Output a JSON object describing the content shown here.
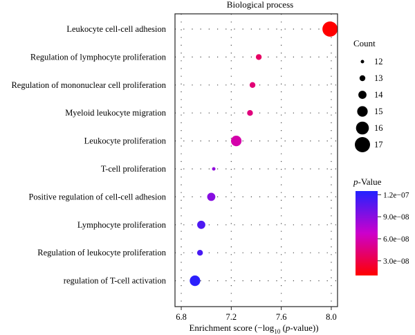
{
  "chart_data": {
    "type": "scatter",
    "title": "Biological process",
    "xlabel_main": "Enrichment score (−log",
    "xlabel_sub": "10",
    "xlabel_paren_open": " (",
    "xlabel_italic": "p",
    "xlabel_tail": "-value))",
    "xlim": [
      6.75,
      8.05
    ],
    "xticks": [
      {
        "value": 6.8,
        "label": "6.8"
      },
      {
        "value": 7.2,
        "label": "7.2"
      },
      {
        "value": 7.6,
        "label": "7.6"
      },
      {
        "value": 8.0,
        "label": "8.0"
      }
    ],
    "grid": true,
    "points": [
      {
        "term": "Leukocyte cell-cell adhesion",
        "x": 7.99,
        "count": 17,
        "pvalue": 1e-08
      },
      {
        "term": "Regulation of lymphocyte proliferation",
        "x": 7.42,
        "count": 13,
        "pvalue": 3.8e-08
      },
      {
        "term": "Regulation of mononuclear cell proliferation",
        "x": 7.37,
        "count": 13,
        "pvalue": 4.3e-08
      },
      {
        "term": "Myeloid leukocyte migration",
        "x": 7.35,
        "count": 13,
        "pvalue": 4.5e-08
      },
      {
        "term": "Leukocyte proliferation",
        "x": 7.24,
        "count": 15,
        "pvalue": 5.8e-08
      },
      {
        "term": "T-cell proliferation",
        "x": 7.06,
        "count": 12,
        "pvalue": 8.7e-08
      },
      {
        "term": "Positive regulation of cell-cell adhesion",
        "x": 7.04,
        "count": 14,
        "pvalue": 9.1e-08
      },
      {
        "term": "Lymphocyte proliferation",
        "x": 6.96,
        "count": 14,
        "pvalue": 1.1e-07
      },
      {
        "term": "Regulation of leukocyte proliferation",
        "x": 6.95,
        "count": 13,
        "pvalue": 1.12e-07
      },
      {
        "term": "regulation of T-cell activation",
        "x": 6.91,
        "count": 15,
        "pvalue": 1.22e-07
      }
    ],
    "size_legend": {
      "title": "Count",
      "placement": "right",
      "items": [
        {
          "label": "12",
          "value": 12
        },
        {
          "label": "13",
          "value": 13
        },
        {
          "label": "14",
          "value": 14
        },
        {
          "label": "15",
          "value": 15
        },
        {
          "label": "16",
          "value": 16
        },
        {
          "label": "17",
          "value": 17
        }
      ]
    },
    "color_legend": {
      "title_italic": "p",
      "title_rest": "-Value",
      "placement": "right-bottom",
      "range": [
        1e-08,
        1.25e-07
      ],
      "low_color": "#ff0000",
      "high_color": "#2222ff",
      "ticks": [
        {
          "label": "1.2e−07",
          "value": 1.2e-07
        },
        {
          "label": "9.0e−08",
          "value": 9e-08
        },
        {
          "label": "6.0e−08",
          "value": 6e-08
        },
        {
          "label": "3.0e−08",
          "value": 3e-08
        }
      ]
    }
  }
}
